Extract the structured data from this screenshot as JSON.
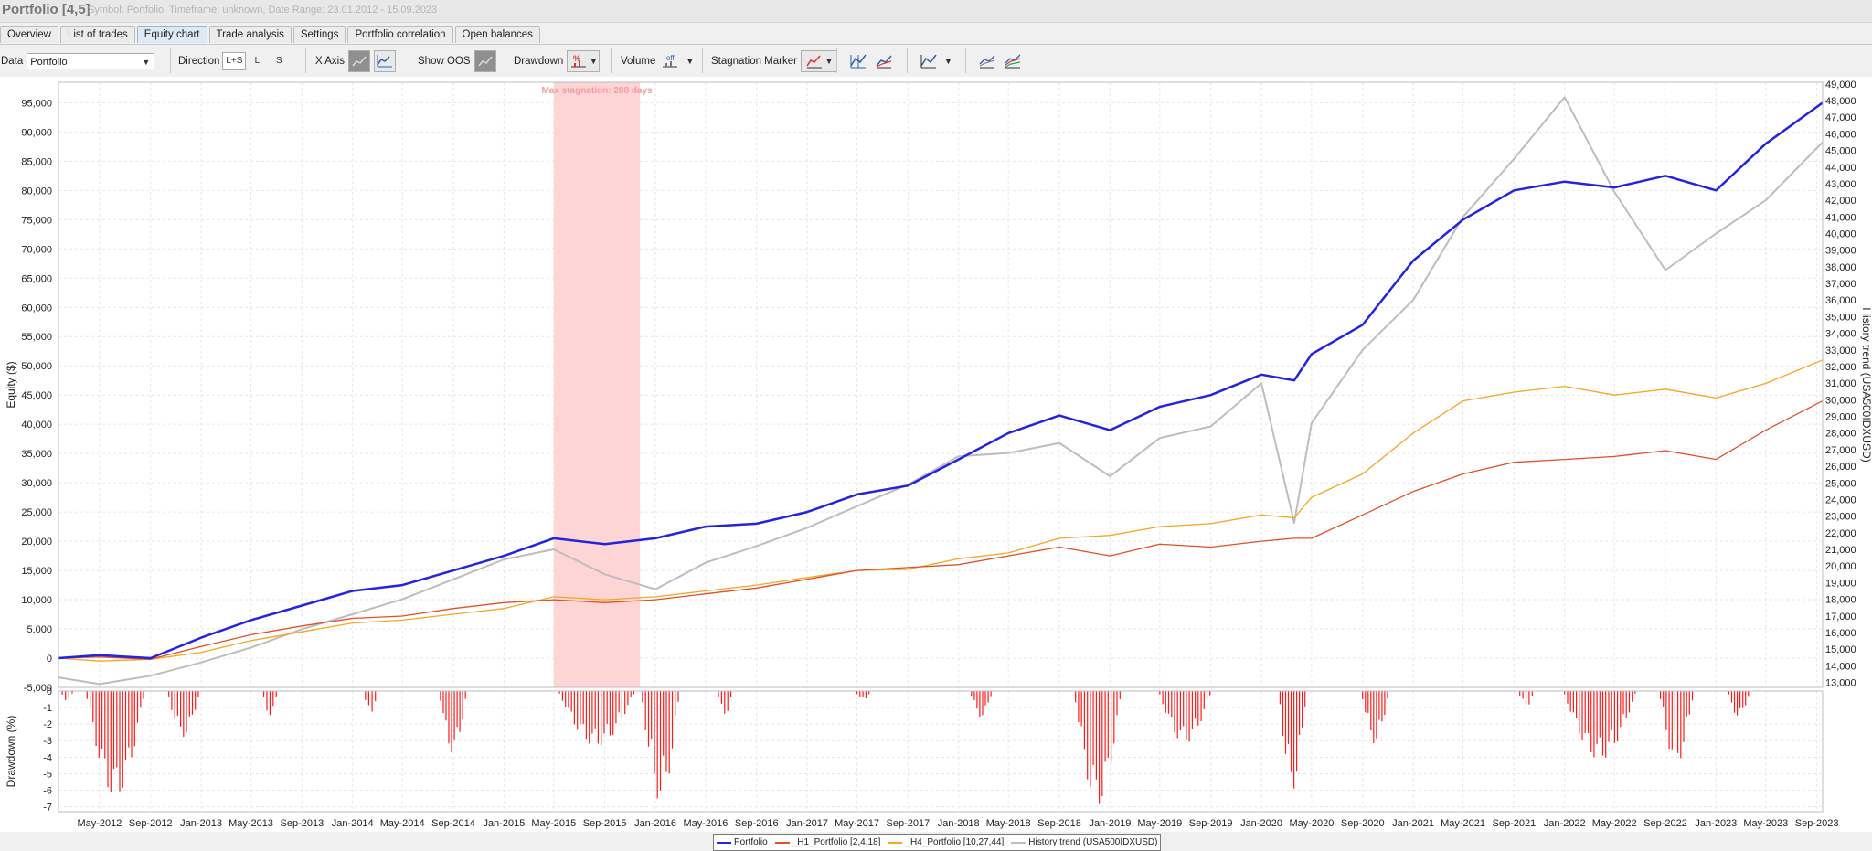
{
  "window": {
    "title": "Portfolio [4,5]",
    "subtitle": "Symbol: Portfolio, Timeframe: unknown, Date Range: 23.01.2012 - 15.09.2023"
  },
  "tabs": [
    {
      "label": "Overview",
      "active": false
    },
    {
      "label": "List of trades",
      "active": false
    },
    {
      "label": "Equity chart",
      "active": true
    },
    {
      "label": "Trade analysis",
      "active": false
    },
    {
      "label": "Settings",
      "active": false
    },
    {
      "label": "Portfolio correlation",
      "active": false
    },
    {
      "label": "Open balances",
      "active": false
    }
  ],
  "toolbar": {
    "data_label": "Data",
    "data_value": "Portfolio",
    "direction_label": "Direction",
    "direction_options": [
      "L+S",
      "L",
      "S"
    ],
    "direction_selected": "L+S",
    "xaxis_label": "X Axis",
    "show_oos_label": "Show OOS",
    "drawdown_label": "Drawdown",
    "volume_label": "Volume",
    "volume_value": "off",
    "stagnation_label": "Stagnation Marker",
    "icons": [
      "xaxis-trades-icon",
      "xaxis-time-icon",
      "oos-icon",
      "drawdown-percent-icon",
      "volume-icon",
      "stagnation-icon",
      "chart-type-1-icon",
      "chart-type-2-icon",
      "chart-type-3-icon",
      "chart-type-4-icon",
      "chart-type-5-icon"
    ]
  },
  "colors": {
    "portfolio": "#2424e0",
    "h1": "#e0502a",
    "h4": "#f5a623",
    "history": "#bdbdbd",
    "drawdown": "#ff1a1a",
    "stagnation": "#fdd5d5",
    "stagnation_text": "#f39a9a"
  },
  "chart_data": {
    "type": "line",
    "stagnation_label": "Max stagnation: 208 days",
    "stagnation_range": [
      "2015-05-01",
      "2015-11-25"
    ],
    "x_tick_labels": [
      "May-2012",
      "Sep-2012",
      "Jan-2013",
      "May-2013",
      "Sep-2013",
      "Jan-2014",
      "May-2014",
      "Sep-2014",
      "Jan-2015",
      "May-2015",
      "Sep-2015",
      "Jan-2016",
      "May-2016",
      "Sep-2016",
      "Jan-2017",
      "May-2017",
      "Sep-2017",
      "Jan-2018",
      "May-2018",
      "Sep-2018",
      "Jan-2019",
      "May-2019",
      "Sep-2019",
      "Jan-2020",
      "May-2020",
      "Sep-2020",
      "Jan-2021",
      "May-2021",
      "Sep-2021",
      "Jan-2022",
      "May-2022",
      "Sep-2022",
      "Jan-2023",
      "May-2023",
      "Sep-2023"
    ],
    "x_range": [
      "2012-01-23",
      "2023-09-15"
    ],
    "ylabel": "Equity ($)",
    "ylim": [
      -5000,
      98500
    ],
    "y_ticks": [
      -5000,
      0,
      5000,
      10000,
      15000,
      20000,
      25000,
      30000,
      35000,
      40000,
      45000,
      50000,
      55000,
      60000,
      65000,
      70000,
      75000,
      80000,
      85000,
      90000,
      95000
    ],
    "y_tick_labels": [
      "-5,000",
      "0",
      "5,000",
      "10,000",
      "15,000",
      "20,000",
      "25,000",
      "30,000",
      "35,000",
      "40,000",
      "45,000",
      "50,000",
      "55,000",
      "60,000",
      "65,000",
      "70,000",
      "75,000",
      "80,000",
      "85,000",
      "90,000",
      "95,000"
    ],
    "y2label": "History trend (USA500IDXUSD)",
    "y2lim": [
      12700,
      49100
    ],
    "y2_ticks": [
      13000,
      14000,
      15000,
      16000,
      17000,
      18000,
      19000,
      20000,
      21000,
      22000,
      23000,
      24000,
      25000,
      26000,
      27000,
      28000,
      29000,
      30000,
      31000,
      32000,
      33000,
      34000,
      35000,
      36000,
      37000,
      38000,
      39000,
      40000,
      41000,
      42000,
      43000,
      44000,
      45000,
      46000,
      47000,
      48000,
      49000
    ],
    "y2_tick_labels": [
      "13,000",
      "14,000",
      "15,000",
      "16,000",
      "17,000",
      "18,000",
      "19,000",
      "20,000",
      "21,000",
      "22,000",
      "23,000",
      "24,000",
      "25,000",
      "26,000",
      "27,000",
      "28,000",
      "29,000",
      "30,000",
      "31,000",
      "32,000",
      "33,000",
      "34,000",
      "35,000",
      "36,000",
      "37,000",
      "38,000",
      "39,000",
      "40,000",
      "41,000",
      "42,000",
      "43,000",
      "44,000",
      "45,000",
      "46,000",
      "47,000",
      "48,000",
      "49,000"
    ],
    "x": [
      "2012-01-23",
      "2012-05-01",
      "2012-09-01",
      "2013-01-01",
      "2013-05-01",
      "2013-09-01",
      "2014-01-01",
      "2014-05-01",
      "2014-09-01",
      "2015-01-01",
      "2015-05-01",
      "2015-09-01",
      "2016-01-01",
      "2016-05-01",
      "2016-09-01",
      "2017-01-01",
      "2017-05-01",
      "2017-09-01",
      "2018-01-01",
      "2018-05-01",
      "2018-09-01",
      "2019-01-01",
      "2019-05-01",
      "2019-09-01",
      "2020-01-01",
      "2020-03-20",
      "2020-05-01",
      "2020-09-01",
      "2021-01-01",
      "2021-05-01",
      "2021-09-01",
      "2022-01-01",
      "2022-05-01",
      "2022-09-01",
      "2023-01-01",
      "2023-05-01",
      "2023-09-15"
    ],
    "series": [
      {
        "name": "Portfolio",
        "axis": "left",
        "values": [
          0,
          500,
          0,
          3500,
          6500,
          9000,
          11500,
          12500,
          15000,
          17500,
          20500,
          19500,
          20500,
          22500,
          23000,
          25000,
          28000,
          29500,
          34000,
          38500,
          41500,
          39000,
          43000,
          45000,
          48500,
          47500,
          52000,
          57000,
          68000,
          75000,
          80000,
          81500,
          80500,
          82500,
          80000,
          88000,
          95000
        ]
      },
      {
        "name": "_H1_Portfolio [2,4,18]",
        "axis": "left",
        "values": [
          0,
          200,
          -200,
          2000,
          4000,
          5500,
          6800,
          7200,
          8500,
          9500,
          10000,
          9500,
          10000,
          11000,
          12000,
          13500,
          15000,
          15500,
          16000,
          17500,
          19000,
          17500,
          19500,
          19000,
          20000,
          20500,
          20500,
          24500,
          28500,
          31500,
          33500,
          34000,
          34500,
          35500,
          34000,
          39000,
          44000
        ]
      },
      {
        "name": "_H4_Portfolio [10,27,44]",
        "axis": "left",
        "values": [
          0,
          -500,
          -200,
          1000,
          3000,
          4500,
          6000,
          6500,
          7500,
          8500,
          10500,
          10000,
          10500,
          11500,
          12500,
          13800,
          15000,
          15200,
          17000,
          18000,
          20500,
          21000,
          22500,
          23000,
          24500,
          24000,
          27500,
          31500,
          38500,
          44000,
          45500,
          46500,
          45000,
          46000,
          44500,
          47000,
          51000
        ]
      },
      {
        "name": "History trend (USA500IDXUSD)",
        "axis": "right",
        "values": [
          13300,
          12900,
          13400,
          14200,
          15100,
          16200,
          17100,
          18000,
          19200,
          20400,
          21000,
          19500,
          18600,
          20200,
          21200,
          22300,
          23600,
          24900,
          26600,
          26800,
          27400,
          25400,
          27700,
          28400,
          31000,
          22600,
          28600,
          33000,
          36000,
          41000,
          44500,
          48200,
          42500,
          37800,
          40000,
          42000,
          45500
        ]
      }
    ],
    "drawdown": {
      "ylabel": "Drawdown (%)",
      "ylim": [
        -7.3,
        0
      ],
      "y_ticks": [
        0,
        -1,
        -2,
        -3,
        -4,
        -5,
        -6,
        -7
      ],
      "y_tick_labels": [
        "0",
        "-1",
        "-2",
        "-3",
        "-4",
        "-5",
        "-6",
        "-7"
      ],
      "events": [
        {
          "start": "2012-02-01",
          "end": "2012-02-25",
          "depth": -0.6
        },
        {
          "start": "2012-04-01",
          "end": "2012-08-15",
          "depth": -6.5
        },
        {
          "start": "2012-10-15",
          "end": "2012-12-25",
          "depth": -2.8
        },
        {
          "start": "2013-06-01",
          "end": "2013-07-01",
          "depth": -1.5
        },
        {
          "start": "2014-02-01",
          "end": "2014-02-25",
          "depth": -1.6
        },
        {
          "start": "2014-08-01",
          "end": "2014-09-30",
          "depth": -3.8
        },
        {
          "start": "2015-05-15",
          "end": "2015-11-10",
          "depth": -3.4
        },
        {
          "start": "2015-12-01",
          "end": "2016-02-25",
          "depth": -6.7
        },
        {
          "start": "2016-06-01",
          "end": "2016-07-01",
          "depth": -1.5
        },
        {
          "start": "2017-05-01",
          "end": "2017-05-30",
          "depth": -0.6
        },
        {
          "start": "2018-02-01",
          "end": "2018-03-20",
          "depth": -1.6
        },
        {
          "start": "2018-10-10",
          "end": "2019-01-25",
          "depth": -7.0
        },
        {
          "start": "2019-05-01",
          "end": "2019-08-30",
          "depth": -3.2
        },
        {
          "start": "2020-02-15",
          "end": "2020-04-15",
          "depth": -6.0
        },
        {
          "start": "2020-09-01",
          "end": "2020-10-31",
          "depth": -3.2
        },
        {
          "start": "2021-09-15",
          "end": "2021-10-15",
          "depth": -1.0
        },
        {
          "start": "2022-01-01",
          "end": "2022-06-20",
          "depth": -4.2
        },
        {
          "start": "2022-08-20",
          "end": "2022-11-05",
          "depth": -4.4
        },
        {
          "start": "2023-02-01",
          "end": "2023-03-20",
          "depth": -1.6
        }
      ]
    },
    "legend_position": "bottom-center",
    "grid": true
  }
}
